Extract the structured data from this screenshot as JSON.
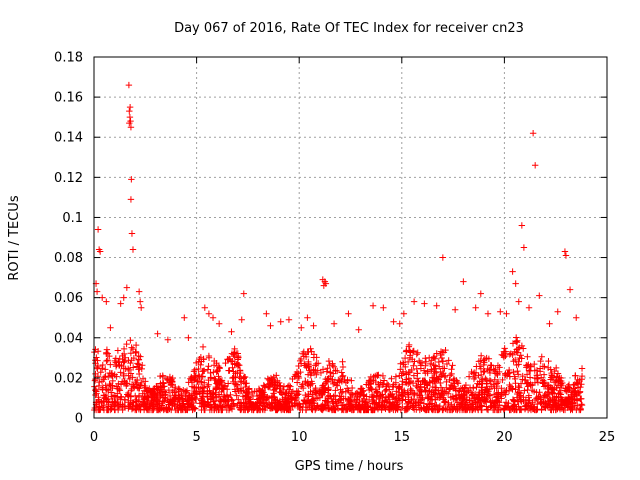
{
  "chart_data": {
    "type": "scatter",
    "title": "Day 067 of 2016, Rate Of TEC Index for receiver cn23",
    "xlabel": "GPS time / hours",
    "ylabel": "ROTI / TECUs",
    "xlim": [
      0,
      25
    ],
    "ylim": [
      0,
      0.18
    ],
    "xticks": [
      "0",
      "5",
      "10",
      "15",
      "20",
      "25"
    ],
    "yticks": [
      "0",
      "0.02",
      "0.04",
      "0.06",
      "0.08",
      "0.1",
      "0.12",
      "0.14",
      "0.16",
      "0.18"
    ],
    "grid": true,
    "marker": "+",
    "series_color": "#ff0000",
    "series": [
      {
        "name": "ROTI",
        "x": [
          1.7,
          1.72,
          1.75,
          1.78,
          1.8,
          1.72,
          1.76,
          1.82,
          1.8,
          1.85,
          1.9,
          0.2,
          0.25,
          0.3,
          0.1,
          0.15,
          11.15,
          11.25,
          11.3,
          11.2,
          20.85,
          20.95,
          21.4,
          21.5,
          22.95,
          23.0,
          17.0,
          18.0,
          7.3,
          18.85,
          20.4,
          20.55,
          23.2,
          0.4,
          0.6,
          1.3,
          1.45,
          1.6,
          2.2,
          2.25,
          2.3,
          4.4,
          4.6,
          5.4,
          5.6,
          5.8,
          6.7,
          7.2,
          8.4,
          8.6,
          9.1,
          9.5,
          10.4,
          10.7,
          11.7,
          12.4,
          13.6,
          14.1,
          14.6,
          15.1,
          15.6,
          16.1,
          16.7,
          17.6,
          18.6,
          19.2,
          19.8,
          20.1,
          20.7,
          21.2,
          21.7,
          22.2,
          22.6,
          23.5,
          0.8,
          3.1,
          3.6,
          6.1,
          10.1,
          12.9,
          14.9
        ],
        "y": [
          0.166,
          0.153,
          0.15,
          0.148,
          0.145,
          0.147,
          0.155,
          0.119,
          0.109,
          0.092,
          0.084,
          0.094,
          0.084,
          0.083,
          0.067,
          0.063,
          0.069,
          0.068,
          0.067,
          0.066,
          0.096,
          0.085,
          0.142,
          0.126,
          0.083,
          0.081,
          0.08,
          0.068,
          0.062,
          0.062,
          0.073,
          0.067,
          0.064,
          0.06,
          0.058,
          0.057,
          0.06,
          0.065,
          0.063,
          0.058,
          0.055,
          0.05,
          0.04,
          0.055,
          0.052,
          0.05,
          0.043,
          0.049,
          0.052,
          0.046,
          0.048,
          0.049,
          0.05,
          0.046,
          0.047,
          0.052,
          0.056,
          0.055,
          0.048,
          0.052,
          0.058,
          0.057,
          0.056,
          0.054,
          0.055,
          0.052,
          0.053,
          0.052,
          0.058,
          0.055,
          0.061,
          0.047,
          0.053,
          0.05,
          0.045,
          0.042,
          0.039,
          0.047,
          0.045,
          0.044,
          0.047
        ]
      }
    ],
    "dense_band": {
      "x_range": [
        0,
        23.8
      ],
      "y_low": 0.004,
      "y_high": 0.04,
      "typical": 0.015
    }
  }
}
